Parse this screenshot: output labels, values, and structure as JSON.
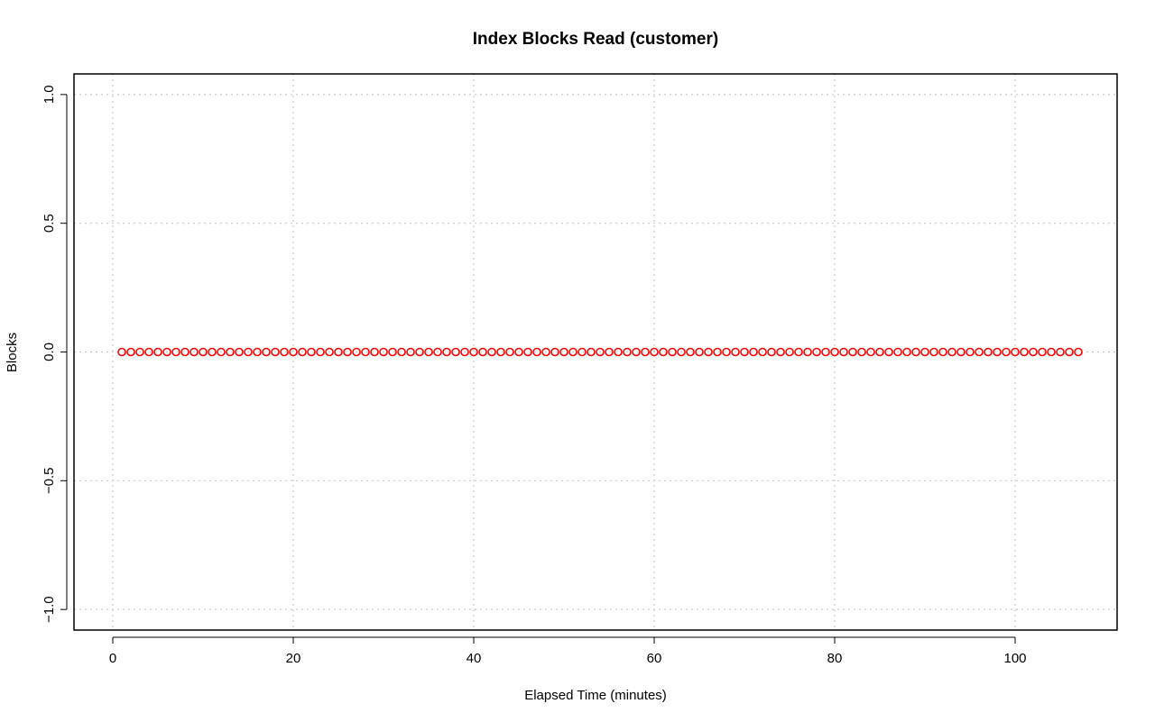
{
  "chart_data": {
    "type": "scatter",
    "title": "Index Blocks Read (customer)",
    "xlabel": "Elapsed Time (minutes)",
    "ylabel": "Blocks",
    "xlim": [
      -4.3,
      111.3
    ],
    "ylim": [
      -1.08,
      1.08
    ],
    "xticks": [
      0,
      20,
      40,
      60,
      80,
      100
    ],
    "xtick_labels": [
      "0",
      "20",
      "40",
      "60",
      "80",
      "100"
    ],
    "yticks": [
      -1.0,
      -0.5,
      0.0,
      0.5,
      1.0
    ],
    "ytick_labels": [
      "−1.0",
      "−0.5",
      "0.0",
      "0.5",
      "1.0"
    ],
    "grid": true,
    "marker": "open-circle",
    "marker_color": "#ff0000",
    "series": [
      {
        "x": [
          1,
          2,
          3,
          4,
          5,
          6,
          7,
          8,
          9,
          10,
          11,
          12,
          13,
          14,
          15,
          16,
          17,
          18,
          19,
          20,
          21,
          22,
          23,
          24,
          25,
          26,
          27,
          28,
          29,
          30,
          31,
          32,
          33,
          34,
          35,
          36,
          37,
          38,
          39,
          40,
          41,
          42,
          43,
          44,
          45,
          46,
          47,
          48,
          49,
          50,
          51,
          52,
          53,
          54,
          55,
          56,
          57,
          58,
          59,
          60,
          61,
          62,
          63,
          64,
          65,
          66,
          67,
          68,
          69,
          70,
          71,
          72,
          73,
          74,
          75,
          76,
          77,
          78,
          79,
          80,
          81,
          82,
          83,
          84,
          85,
          86,
          87,
          88,
          89,
          90,
          91,
          92,
          93,
          94,
          95,
          96,
          97,
          98,
          99,
          100,
          101,
          102,
          103,
          104,
          105,
          106,
          107
        ],
        "y_constant": 0
      }
    ]
  }
}
